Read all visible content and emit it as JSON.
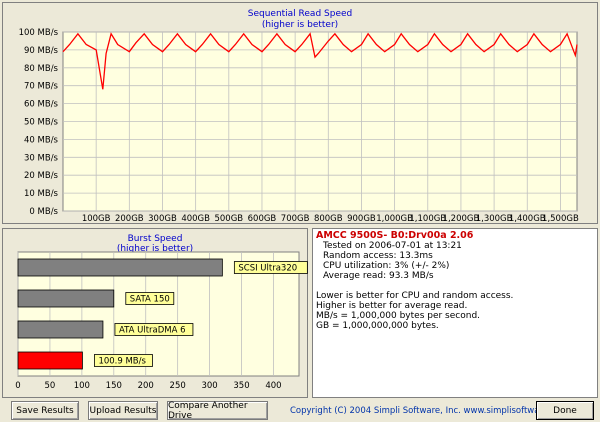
{
  "seq": {
    "title_line1": "Sequential Read Speed",
    "title_line2": "(higher is better)",
    "y_ticks": [
      "100 MB/s",
      "90 MB/s",
      "80 MB/s",
      "70 MB/s",
      "60 MB/s",
      "50 MB/s",
      "40 MB/s",
      "30 MB/s",
      "20 MB/s",
      "10 MB/s",
      "0 MB/s"
    ],
    "x_ticks": [
      "100GB",
      "200GB",
      "300GB",
      "400GB",
      "500GB",
      "600GB",
      "700GB",
      "800GB",
      "900GB",
      "1,000GB",
      "1,100GB",
      "1,200GB",
      "1,300GB",
      "1,400GB",
      "1,500GB"
    ],
    "line_color": "#ff0000"
  },
  "burst": {
    "title_line1": "Burst Speed",
    "title_line2": "(higher is better)",
    "x_ticks": [
      "0",
      "50",
      "100",
      "150",
      "200",
      "250",
      "300",
      "350",
      "400"
    ]
  },
  "chart_data": [
    {
      "type": "line",
      "title": "Sequential Read Speed",
      "subtitle": "(higher is better)",
      "xlabel": "",
      "ylabel": "",
      "xlim": [
        0,
        1550
      ],
      "ylim": [
        0,
        100
      ],
      "x": [
        0,
        20,
        45,
        70,
        100,
        120,
        130,
        145,
        165,
        200,
        220,
        245,
        270,
        300,
        320,
        345,
        370,
        400,
        420,
        445,
        470,
        500,
        520,
        545,
        570,
        600,
        620,
        645,
        670,
        700,
        720,
        745,
        760,
        770,
        800,
        820,
        845,
        870,
        900,
        920,
        945,
        970,
        1000,
        1020,
        1045,
        1070,
        1100,
        1120,
        1145,
        1170,
        1200,
        1220,
        1245,
        1270,
        1300,
        1320,
        1345,
        1370,
        1400,
        1420,
        1445,
        1470,
        1500,
        1520,
        1545,
        1550
      ],
      "series": [
        {
          "values": [
            89,
            93,
            99,
            93,
            90,
            68,
            88,
            99,
            93,
            89,
            94,
            99,
            93,
            89,
            93,
            99,
            93,
            89,
            93,
            99,
            93,
            89,
            93,
            99,
            93,
            89,
            93,
            99,
            93,
            89,
            93,
            99,
            86,
            88,
            95,
            99,
            93,
            89,
            93,
            99,
            93,
            89,
            93,
            99,
            93,
            89,
            93,
            99,
            93,
            89,
            93,
            99,
            93,
            89,
            93,
            99,
            93,
            89,
            93,
            99,
            93,
            89,
            93,
            99,
            87,
            93
          ]
        }
      ]
    },
    {
      "type": "bar",
      "title": "Burst Speed",
      "subtitle": "(higher is better)",
      "categories": [
        "SCSI Ultra320",
        "SATA 150",
        "ATA UltraDMA 6",
        "100.9 MB/s"
      ],
      "values": [
        320,
        150,
        133,
        100.9
      ],
      "colors": [
        "#808080",
        "#808080",
        "#808080",
        "#ff0000"
      ],
      "xlim": [
        0,
        440
      ]
    }
  ],
  "info": {
    "header": "AMCC 9500S- B0:Drv00a 2.06",
    "tested": "Tested on 2006-07-01 at 13:21",
    "access": "Random access: 13.3ms",
    "cpu": "CPU utilization: 3% (+/- 2%)",
    "avg": "Average read: 93.3 MB/s",
    "note1": "Lower is better for CPU and random access.",
    "note2": "Higher is better for average read.",
    "note3": "MB/s = 1,000,000 bytes per second.",
    "note4": "GB = 1,000,000,000 bytes."
  },
  "buttons": {
    "save": "Save Results",
    "upload": "Upload Results",
    "compare": "Compare Another Drive",
    "done": "Done"
  },
  "copyright": "Copyright (C) 2004 Simpli Software, Inc. www.simplisoftware.com"
}
